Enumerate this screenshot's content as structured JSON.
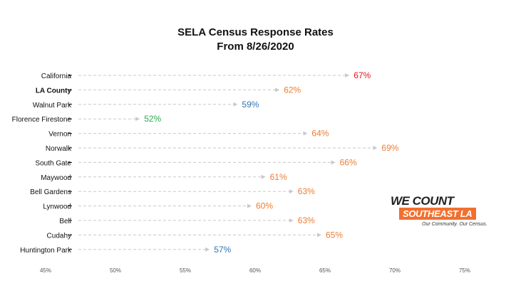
{
  "title_line1": "SELA Census Response Rates",
  "title_line2": "From 8/26/2020",
  "logo": {
    "line1": "WE COUNT",
    "line2": "SOUTHEAST LA",
    "tagline": "Our Community. Our Census."
  },
  "colors": {
    "orange": "#ed7d31",
    "red": "#e8141b",
    "blue": "#2e75b6",
    "green": "#2ea84f",
    "arrow": "#c9c9c9",
    "brand": "#f1702f"
  },
  "chart_data": {
    "type": "bar",
    "title": "SELA Census Response Rates From 8/26/2020",
    "xlim": [
      45,
      75
    ],
    "ticks": [
      "45%",
      "50%",
      "55%",
      "60%",
      "65%",
      "70%",
      "75%"
    ],
    "tick_values": [
      45,
      50,
      55,
      60,
      65,
      70,
      75
    ],
    "categories": [
      "California",
      "LA County",
      "Walnut Park",
      "Florence Firestone",
      "Vernon",
      "Norwalk",
      "South Gate",
      "Maywood",
      "Bell Gardens",
      "Lynwood",
      "Bell",
      "Cudahy",
      "Huntington Park"
    ],
    "values": [
      67,
      62,
      59,
      52,
      64,
      69,
      66,
      61,
      63,
      60,
      63,
      65,
      57
    ],
    "value_labels": [
      "67%",
      "62%",
      "59%",
      "52%",
      "64%",
      "69%",
      "66%",
      "61%",
      "63%",
      "60%",
      "63%",
      "65%",
      "57%"
    ],
    "label_colors": [
      "red",
      "orange",
      "blue",
      "green",
      "orange",
      "orange",
      "orange",
      "orange",
      "orange",
      "orange",
      "orange",
      "orange",
      "blue"
    ],
    "bold_categories": [
      "LA County"
    ]
  }
}
